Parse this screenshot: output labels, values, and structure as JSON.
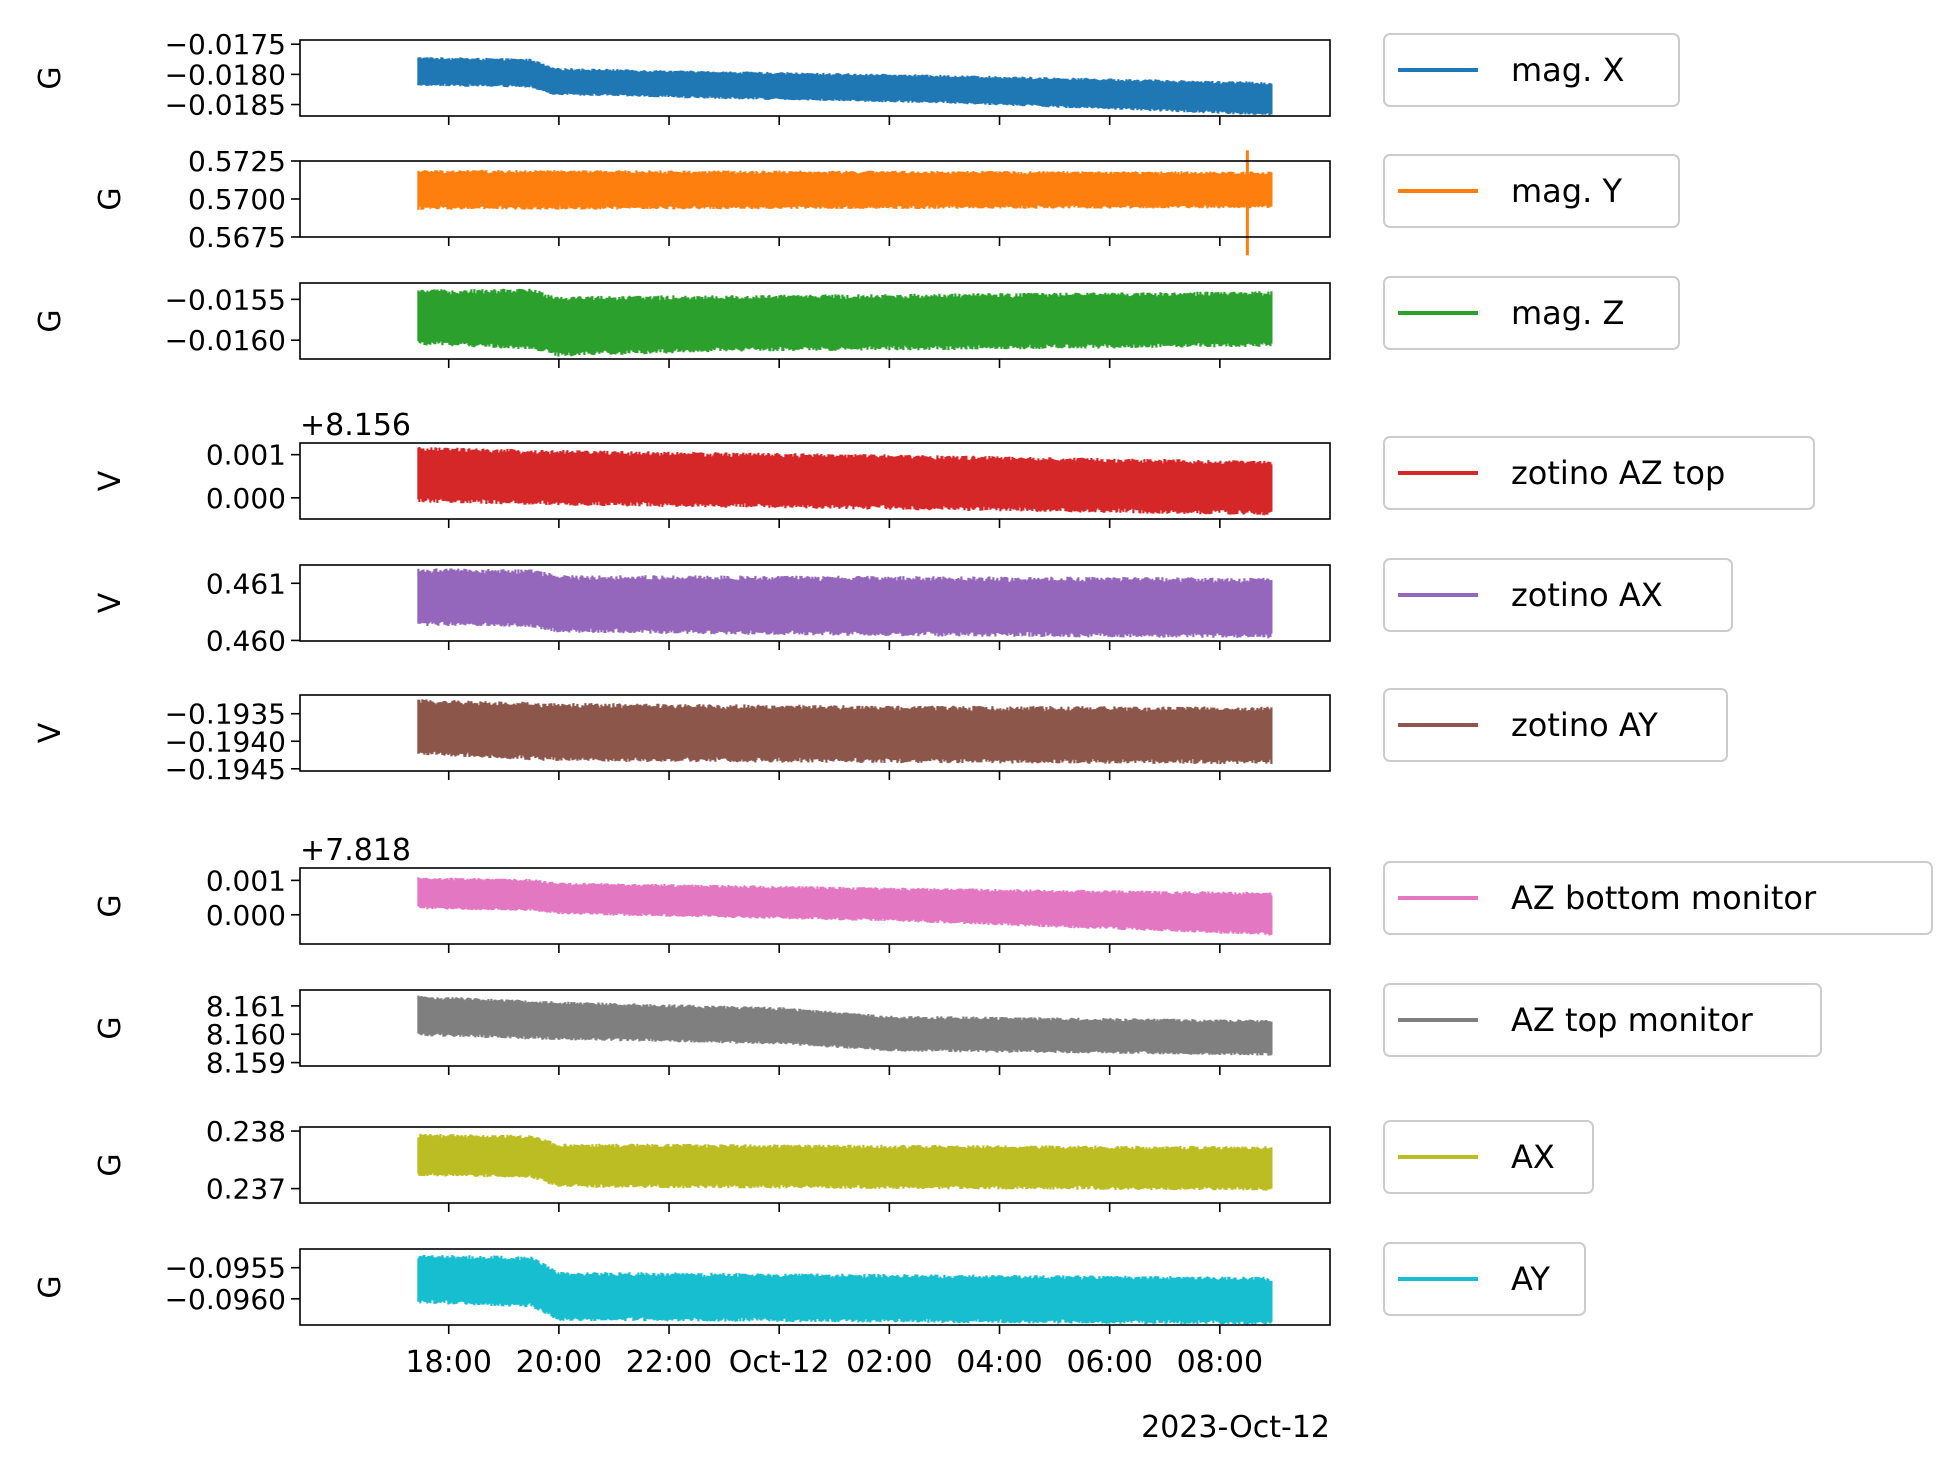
{
  "chart_data": {
    "type": "line",
    "x_axis": {
      "ticks": [
        "18:00",
        "20:00",
        "22:00",
        "Oct-12",
        "02:00",
        "04:00",
        "06:00",
        "08:00"
      ],
      "tick_hours": [
        18,
        20,
        22,
        24,
        26,
        28,
        30,
        32
      ],
      "range_hours": [
        15.3,
        34.0
      ],
      "data_range_hours": [
        17.45,
        32.95
      ],
      "offset_label": "2023-Oct-12"
    },
    "panels": [
      {
        "series": "mag. X",
        "color": "#1f77b4",
        "ylabel": "G",
        "offset": "",
        "ylim": [
          -0.01869,
          -0.01743
        ],
        "yticks": [
          -0.0175,
          -0.018,
          -0.0185
        ],
        "yticklabels": [
          "−0.0175",
          "−0.0180",
          "−0.0185"
        ],
        "trend": [
          [
            17.45,
            -0.01773,
            -0.01817
          ],
          [
            19.5,
            -0.01776,
            -0.0182
          ],
          [
            19.9,
            -0.01791,
            -0.01832
          ],
          [
            22.5,
            -0.01796,
            -0.01838
          ],
          [
            27.0,
            -0.01803,
            -0.01846
          ],
          [
            32.95,
            -0.01815,
            -0.01866
          ]
        ]
      },
      {
        "series": "mag. Y",
        "color": "#ff7f0e",
        "ylabel": "G",
        "offset": "",
        "ylim": [
          -0.0025,
          0.0025
        ],
        "base": 0.57,
        "yticks": [
          0.5725,
          0.57,
          0.5675
        ],
        "yticklabels": [
          "0.5725",
          "0.5700",
          "0.5675"
        ],
        "trend": [
          [
            17.45,
            0.5718,
            0.5694
          ],
          [
            32.95,
            0.5717,
            0.5695
          ]
        ],
        "spikes": [
          [
            32.5,
            0.5732,
            0.5663
          ]
        ]
      },
      {
        "series": "mag. Z",
        "color": "#2ca02c",
        "ylabel": "G",
        "offset": "",
        "ylim": [
          -0.01623,
          -0.0153
        ],
        "yticks": [
          -0.0155,
          -0.016
        ],
        "yticklabels": [
          "−0.0155",
          "−0.0160"
        ],
        "trend": [
          [
            17.45,
            -0.01541,
            -0.01603
          ],
          [
            19.5,
            -0.0154,
            -0.01608
          ],
          [
            20.0,
            -0.01549,
            -0.01617
          ],
          [
            23.0,
            -0.01548,
            -0.01611
          ],
          [
            27.0,
            -0.01546,
            -0.01609
          ],
          [
            32.95,
            -0.01543,
            -0.01605
          ]
        ]
      },
      {
        "series": "zotino AZ top",
        "color": "#d62728",
        "ylabel": "V",
        "offset": "+8.156",
        "ylim": [
          -0.00049,
          0.00127
        ],
        "yticks": [
          0.001,
          0.0
        ],
        "yticklabels": [
          "0.001",
          "0.000"
        ],
        "trend": [
          [
            17.45,
            0.00112,
            -5e-05
          ],
          [
            20.0,
            0.00105,
            -0.00012
          ],
          [
            26.0,
            0.00095,
            -0.00022
          ],
          [
            32.95,
            0.0008,
            -0.00035
          ]
        ]
      },
      {
        "series": "zotino AX",
        "color": "#9467bd",
        "ylabel": "V",
        "offset": "",
        "ylim": [
          0.45999,
          0.46132
        ],
        "yticks": [
          0.461,
          0.46
        ],
        "yticklabels": [
          "0.461",
          "0.460"
        ],
        "trend": [
          [
            17.45,
            0.46122,
            0.4603
          ],
          [
            19.5,
            0.4612,
            0.46028
          ],
          [
            20.0,
            0.4611,
            0.46018
          ],
          [
            26.0,
            0.46108,
            0.46012
          ],
          [
            32.95,
            0.46105,
            0.46008
          ]
        ]
      },
      {
        "series": "zotino AY",
        "color": "#8c564b",
        "ylabel": "V",
        "offset": "",
        "ylim": [
          -0.19454,
          -0.19316
        ],
        "yticks": [
          -0.1935,
          -0.194,
          -0.1945
        ],
        "yticklabels": [
          "−0.1935",
          "−0.1940",
          "−0.1945"
        ],
        "trend": [
          [
            17.45,
            -0.19328,
            -0.1942
          ],
          [
            20.0,
            -0.19335,
            -0.19432
          ],
          [
            26.0,
            -0.1934,
            -0.19435
          ],
          [
            32.95,
            -0.19342,
            -0.19437
          ]
        ]
      },
      {
        "series": "AZ bottom monitor",
        "color": "#e377c2",
        "ylabel": "G",
        "offset": "+7.818",
        "ylim": [
          -0.00085,
          0.00136
        ],
        "yticks": [
          0.001,
          0.0
        ],
        "yticklabels": [
          "0.001",
          "0.000"
        ],
        "trend": [
          [
            17.45,
            0.00105,
            0.0002
          ],
          [
            19.5,
            0.001,
            0.00015
          ],
          [
            20.0,
            0.0009,
            5e-05
          ],
          [
            26.0,
            0.00075,
            -0.00015
          ],
          [
            32.95,
            0.0006,
            -0.00055
          ]
        ]
      },
      {
        "series": "AZ top monitor",
        "color": "#7f7f7f",
        "ylabel": "G",
        "offset": "",
        "ylim": [
          8.15888,
          8.16156
        ],
        "yticks": [
          8.161,
          8.16,
          8.159
        ],
        "yticklabels": [
          "8.161",
          "8.160",
          "8.159"
        ],
        "trend": [
          [
            17.45,
            8.1613,
            8.16
          ],
          [
            20.0,
            8.1611,
            8.15985
          ],
          [
            24.0,
            8.1609,
            8.1597
          ],
          [
            26.0,
            8.1606,
            8.15945
          ],
          [
            32.95,
            8.16045,
            8.1593
          ]
        ]
      },
      {
        "series": "AX",
        "color": "#bcbd22",
        "ylabel": "G",
        "offset": "",
        "ylim": [
          0.23675,
          0.23807
        ],
        "yticks": [
          0.238,
          0.237
        ],
        "yticklabels": [
          "0.238",
          "0.237"
        ],
        "trend": [
          [
            17.45,
            0.23792,
            0.23725
          ],
          [
            19.5,
            0.2379,
            0.23722
          ],
          [
            20.0,
            0.23775,
            0.23705
          ],
          [
            32.95,
            0.2377,
            0.237
          ]
        ]
      },
      {
        "series": "AY",
        "color": "#17becf",
        "ylabel": "G",
        "offset": "",
        "ylim": [
          -0.09642,
          -0.0952
        ],
        "yticks": [
          -0.0955,
          -0.096
        ],
        "yticklabels": [
          "−0.0955",
          "−0.0960"
        ],
        "trend": [
          [
            17.45,
            -0.09532,
            -0.09604
          ],
          [
            19.5,
            -0.09535,
            -0.0961
          ],
          [
            20.0,
            -0.0956,
            -0.09632
          ],
          [
            32.95,
            -0.09568,
            -0.09638
          ]
        ]
      }
    ],
    "legend_placement": "right of each panel",
    "grid": false
  }
}
